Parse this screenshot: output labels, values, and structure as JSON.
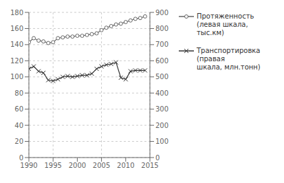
{
  "chart_data": {
    "type": "line",
    "x": [
      1990,
      1991,
      1992,
      1993,
      1994,
      1995,
      1996,
      1997,
      1998,
      1999,
      2000,
      2001,
      2002,
      2003,
      2004,
      2005,
      2006,
      2007,
      2008,
      2009,
      2010,
      2011,
      2012,
      2013,
      2014
    ],
    "series": [
      {
        "name": "Протяженность\n(левая шкала, тыс.км)",
        "color": "#666666",
        "marker": "circle",
        "line_style": "solid",
        "values": [
          143,
          148,
          145,
          144,
          142,
          143,
          148,
          149,
          150,
          150,
          151,
          151,
          152,
          153,
          154,
          158,
          161,
          163,
          165,
          166,
          168,
          170,
          172,
          173,
          175
        ]
      },
      {
        "name": "Транспортировка\n(правая\nшкала, млн.тонн)",
        "color": "#333333",
        "marker": "x",
        "line_style": "solid",
        "axis": "y2",
        "values": [
          550,
          565,
          535,
          525,
          480,
          475,
          485,
          500,
          505,
          500,
          505,
          510,
          510,
          520,
          550,
          565,
          575,
          580,
          590,
          495,
          485,
          535,
          540,
          540,
          540
        ]
      }
    ],
    "xlim": [
      1990,
      2015
    ],
    "xticks": [
      1990,
      1995,
      2000,
      2005,
      2010,
      2015
    ],
    "ylim": [
      0,
      180
    ],
    "yticks": [
      0,
      20,
      40,
      60,
      80,
      100,
      120,
      140,
      160,
      180
    ],
    "y2lim": [
      0,
      900
    ],
    "y2ticks": [
      0,
      100,
      200,
      300,
      400,
      500,
      600,
      700,
      800,
      900
    ],
    "grid": true,
    "legend": "right"
  }
}
